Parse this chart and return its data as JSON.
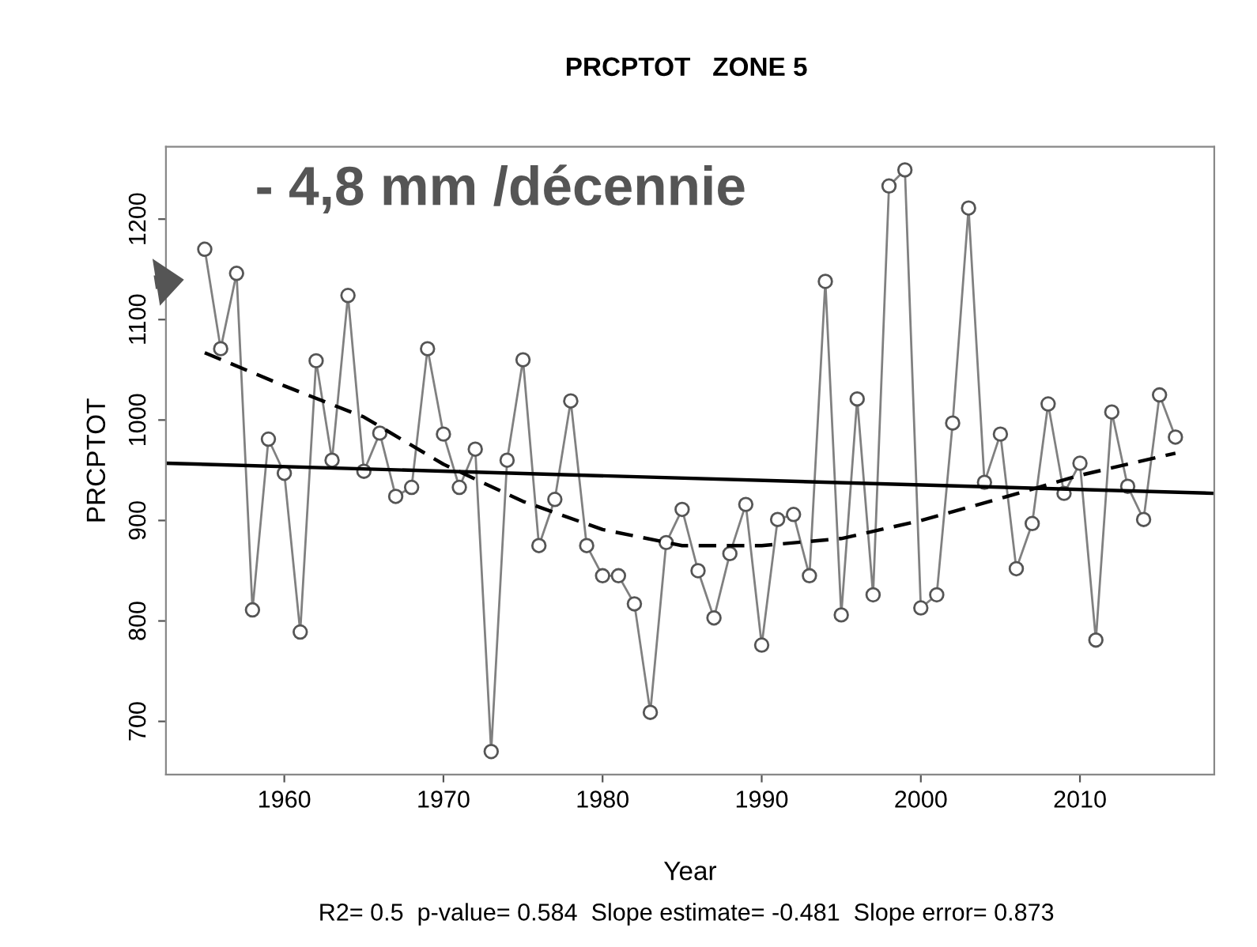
{
  "chart_data": {
    "type": "line",
    "title": "PRCPTOT   ZONE 5",
    "xlabel": "Year",
    "ylabel": "PRCPTOT",
    "x": [
      1955,
      1956,
      1957,
      1958,
      1959,
      1960,
      1961,
      1962,
      1963,
      1964,
      1965,
      1966,
      1967,
      1968,
      1969,
      1970,
      1971,
      1972,
      1973,
      1974,
      1975,
      1976,
      1977,
      1978,
      1979,
      1980,
      1981,
      1982,
      1983,
      1984,
      1985,
      1986,
      1987,
      1988,
      1989,
      1990,
      1991,
      1992,
      1993,
      1994,
      1995,
      1996,
      1997,
      1998,
      1999,
      2000,
      2001,
      2002,
      2003,
      2004,
      2005,
      2006,
      2007,
      2008,
      2009,
      2010,
      2011,
      2012,
      2013,
      2014,
      2015,
      2016
    ],
    "series": [
      {
        "color": "#808080",
        "marker": "circle",
        "line_style": "solid",
        "values": [
          1170,
          1071,
          1146,
          811,
          981,
          947,
          789,
          1059,
          960,
          1124,
          949,
          987,
          924,
          933,
          1071,
          986,
          933,
          971,
          670,
          960,
          1060,
          875,
          921,
          1019,
          875,
          845,
          845,
          817,
          709,
          878,
          911,
          850,
          803,
          867,
          916,
          776,
          901,
          906,
          845,
          1138,
          806,
          1021,
          826,
          1233,
          1249,
          813,
          826,
          997,
          1211,
          938,
          986,
          852,
          897,
          1016,
          927,
          957,
          781,
          1008,
          934,
          901,
          1025,
          983
        ]
      },
      {
        "color": "#000000",
        "marker": "none",
        "line_style": "solid",
        "x": [
          1952.56,
          2018.44
        ],
        "values": [
          957,
          927
        ]
      },
      {
        "color": "#000000",
        "marker": "none",
        "line_style": "dashed",
        "x": [
          1955,
          1960,
          1965,
          1970,
          1975,
          1980,
          1985,
          1990,
          1995,
          2000,
          2005,
          2010,
          2016
        ],
        "values": [
          1067,
          1034,
          1003,
          956,
          919,
          891,
          875,
          875,
          882,
          900,
          922,
          945,
          967
        ]
      }
    ],
    "xlim": [
      1952.56,
      2018.44
    ],
    "xticks": [
      1960,
      1970,
      1980,
      1990,
      2000,
      2010
    ],
    "ylim": [
      647,
      1272
    ],
    "yticks": [
      700,
      800,
      900,
      1000,
      1100,
      1200
    ],
    "grid": false,
    "legend": false,
    "annotations": [
      "- 4,8 mm /décennie",
      "R2= 0.5  p-value= 0.584  Slope estimate= -0.481  Slope error= 0.873"
    ]
  }
}
